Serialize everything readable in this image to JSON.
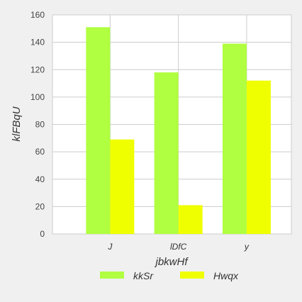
{
  "chart_data": {
    "type": "bar",
    "title": "",
    "xlabel": "jbkwHf",
    "ylabel": "klFBqU",
    "categories": [
      "J",
      "lDfC",
      "y"
    ],
    "series": [
      {
        "name": "kkSr",
        "values": [
          151,
          118,
          139
        ],
        "color": "#b0ff40"
      },
      {
        "name": "Hwqx",
        "values": [
          69,
          21,
          112
        ],
        "color": "#f0ff00"
      }
    ],
    "ylim": [
      0,
      160
    ],
    "yticks": [
      0,
      20,
      40,
      60,
      80,
      100,
      120,
      140,
      160
    ],
    "grid": true,
    "legend_position": "bottom"
  },
  "colors": {
    "background": "#f0f0f0",
    "plot_background": "#ffffff",
    "grid": "#cccccc"
  }
}
